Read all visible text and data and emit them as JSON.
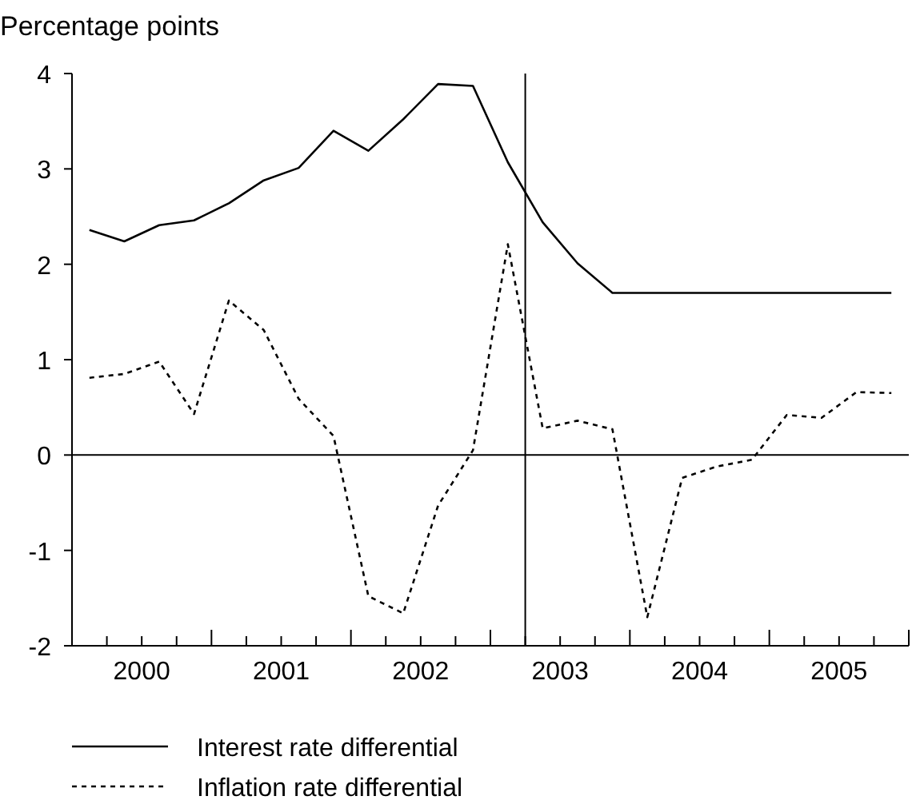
{
  "chart_data": {
    "type": "line",
    "ylabel": "Percentage points",
    "x": [
      2000.125,
      2000.375,
      2000.625,
      2000.875,
      2001.125,
      2001.375,
      2001.625,
      2001.875,
      2002.125,
      2002.375,
      2002.625,
      2002.875,
      2003.125,
      2003.375,
      2003.625,
      2003.875,
      2004.125,
      2004.375,
      2004.625,
      2004.875,
      2005.125,
      2005.375,
      2005.625,
      2005.875
    ],
    "series": [
      {
        "name": "Interest rate differential",
        "color": "#000000",
        "line_style": "solid",
        "values": [
          2.36,
          2.24,
          2.41,
          2.46,
          2.64,
          2.88,
          3.01,
          3.4,
          3.19,
          3.52,
          3.89,
          3.87,
          3.07,
          2.44,
          2.01,
          1.7,
          1.7,
          1.7,
          1.7,
          1.7,
          1.7,
          1.7,
          1.7,
          1.7
        ]
      },
      {
        "name": "Inflation rate differential",
        "color": "#000000",
        "line_style": "dashed",
        "values": [
          0.81,
          0.85,
          0.98,
          0.43,
          1.62,
          1.31,
          0.59,
          0.2,
          -1.48,
          -1.66,
          -0.53,
          0.05,
          2.21,
          0.28,
          0.36,
          0.27,
          -1.7,
          -0.24,
          -0.12,
          -0.05,
          0.42,
          0.39,
          0.66,
          0.65
        ]
      }
    ],
    "xlim": [
      2000,
      2006
    ],
    "xticks": [
      {
        "value": 2000.5,
        "label": "2000"
      },
      {
        "value": 2001.5,
        "label": "2001"
      },
      {
        "value": 2002.5,
        "label": "2002"
      },
      {
        "value": 2003.5,
        "label": "2003"
      },
      {
        "value": 2004.5,
        "label": "2004"
      },
      {
        "value": 2005.5,
        "label": "2005"
      },
      {
        "value": 2000.25,
        "label": null
      },
      {
        "value": 2000.75,
        "label": null
      },
      {
        "value": 2001,
        "label": null
      },
      {
        "value": 2001.25,
        "label": null
      },
      {
        "value": 2001.75,
        "label": null
      },
      {
        "value": 2002,
        "label": null
      },
      {
        "value": 2002.25,
        "label": null
      },
      {
        "value": 2002.75,
        "label": null
      },
      {
        "value": 2003,
        "label": null
      },
      {
        "value": 2003.25,
        "label": null
      },
      {
        "value": 2003.75,
        "label": null
      },
      {
        "value": 2004,
        "label": null
      },
      {
        "value": 2004.25,
        "label": null
      },
      {
        "value": 2004.75,
        "label": null
      },
      {
        "value": 2005,
        "label": null
      },
      {
        "value": 2005.25,
        "label": null
      },
      {
        "value": 2005.75,
        "label": null
      },
      {
        "value": 2006,
        "label": null
      }
    ],
    "ylim": [
      -2,
      4
    ],
    "yticks": [
      -2,
      -1,
      0,
      1,
      2,
      3,
      4
    ],
    "ref_lines": [
      {
        "axis": "y",
        "value": 0
      },
      {
        "axis": "x",
        "value": 2003.25
      }
    ],
    "grid": false,
    "legend": "bottom",
    "marker": "none"
  }
}
